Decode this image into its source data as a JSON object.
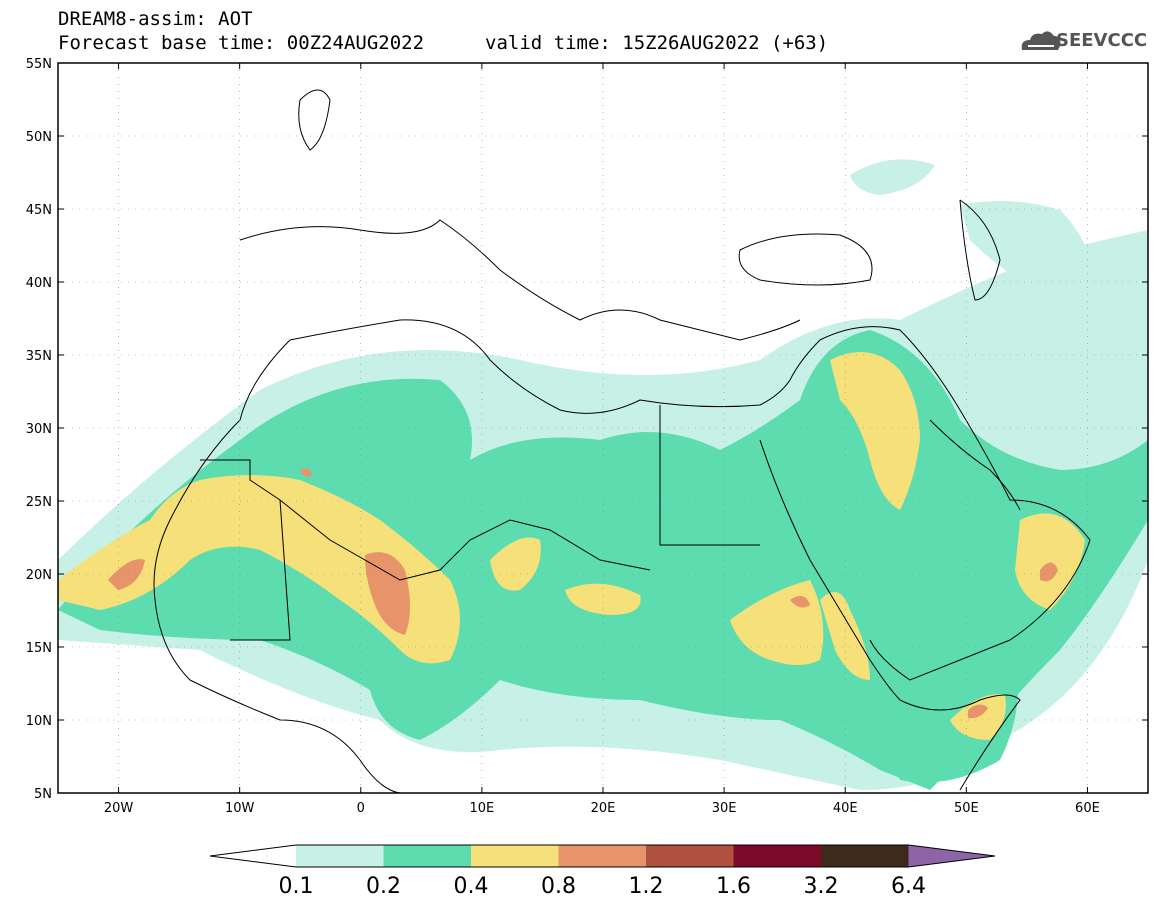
{
  "header": {
    "line1": "DREAM8-assim: AOT",
    "base_time": "Forecast base time: 00Z24AUG2022",
    "valid_time": "valid time: 15Z26AUG2022 (+63)"
  },
  "logo": {
    "text": "SEEVCCC",
    "icon": "cloud-logo-icon"
  },
  "axes": {
    "lat_labels": [
      "55N",
      "50N",
      "45N",
      "40N",
      "35N",
      "30N",
      "25N",
      "20N",
      "15N",
      "10N",
      "5N"
    ],
    "lon_labels": [
      "20W",
      "10W",
      "0",
      "10E",
      "20E",
      "30E",
      "40E",
      "50E",
      "60E"
    ]
  },
  "colorbar": {
    "labels": [
      "0.1",
      "0.2",
      "0.4",
      "0.8",
      "1.2",
      "1.6",
      "3.2",
      "6.4"
    ],
    "colors": [
      "#ffffff",
      "#c7f0e6",
      "#5ddcb0",
      "#f5e07a",
      "#e8946a",
      "#b0503e",
      "#7e0a2a",
      "#3e2a1c",
      "#8e64a8"
    ]
  },
  "colors": {
    "low": "#c7f0e6",
    "mid": "#5ddcb0",
    "high": "#f5e07a",
    "higher": "#e8946a"
  }
}
